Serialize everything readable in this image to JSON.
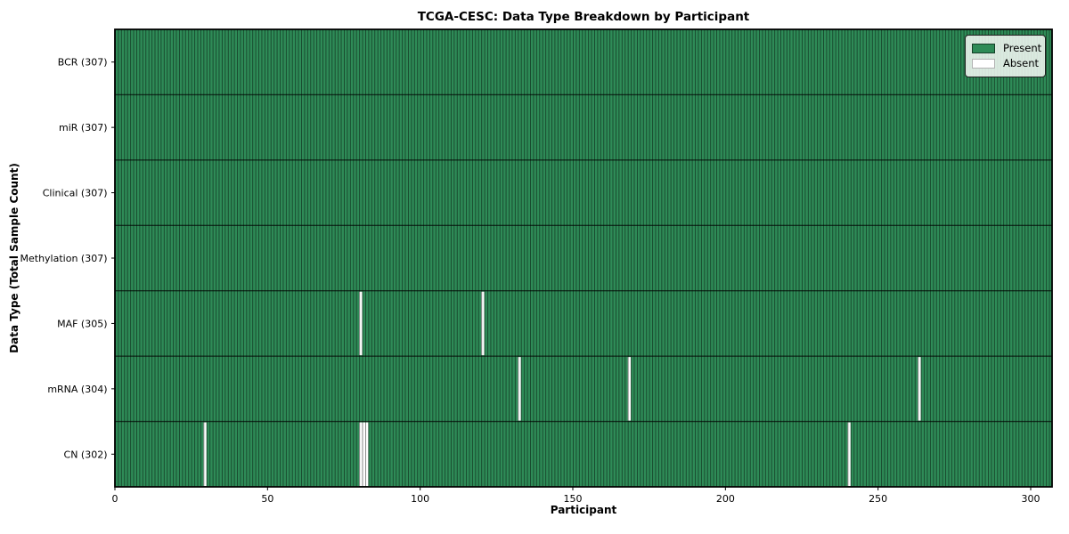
{
  "figure": {
    "title": "TCGA-CESC: Data Type Breakdown by Participant",
    "xlabel": "Participant",
    "ylabel": "Data Type (Total Sample Count)"
  },
  "legend": {
    "items": [
      {
        "label": "Present",
        "color": "#2e8b57",
        "edge": "rgba(0,0,0,0.55)"
      },
      {
        "label": "Absent",
        "color": "#ffffff",
        "edge": "rgba(0,0,0,0.3)"
      }
    ]
  },
  "chart_data": {
    "type": "heatmap",
    "title": "TCGA-CESC: Data Type Breakdown by Participant",
    "xlabel": "Participant",
    "ylabel": "Data Type (Total Sample Count)",
    "n_participants": 307,
    "x_ticks": [
      0,
      50,
      100,
      150,
      200,
      250,
      300
    ],
    "value_legend": {
      "present": "Present",
      "absent": "Absent"
    },
    "rows": [
      {
        "label": "BCR (307)",
        "data_type": "BCR",
        "total_samples": 307,
        "absent_participants": []
      },
      {
        "label": "miR (307)",
        "data_type": "miR",
        "total_samples": 307,
        "absent_participants": []
      },
      {
        "label": "Clinical (307)",
        "data_type": "Clinical",
        "total_samples": 307,
        "absent_participants": []
      },
      {
        "label": "Methylation (307)",
        "data_type": "Methylation",
        "total_samples": 307,
        "absent_participants": []
      },
      {
        "label": "MAF (305)",
        "data_type": "MAF",
        "total_samples": 305,
        "absent_participants": [
          80,
          120
        ]
      },
      {
        "label": "mRNA (304)",
        "data_type": "mRNA",
        "total_samples": 304,
        "absent_participants": [
          132,
          168,
          263
        ]
      },
      {
        "label": "CN (302)",
        "data_type": "CN",
        "total_samples": 302,
        "absent_participants": [
          29,
          80,
          81,
          82,
          240
        ]
      }
    ],
    "colors": {
      "present": "#2e8b57",
      "absent": "#ffffff",
      "cell_edge": "rgba(0,0,0,0.5)",
      "row_divider": "rgba(0,0,0,0.65)",
      "spine": "#000000",
      "tick": "#000000",
      "text": "#000000"
    },
    "layout": {
      "legend_position": "upper right",
      "grid": false
    }
  }
}
